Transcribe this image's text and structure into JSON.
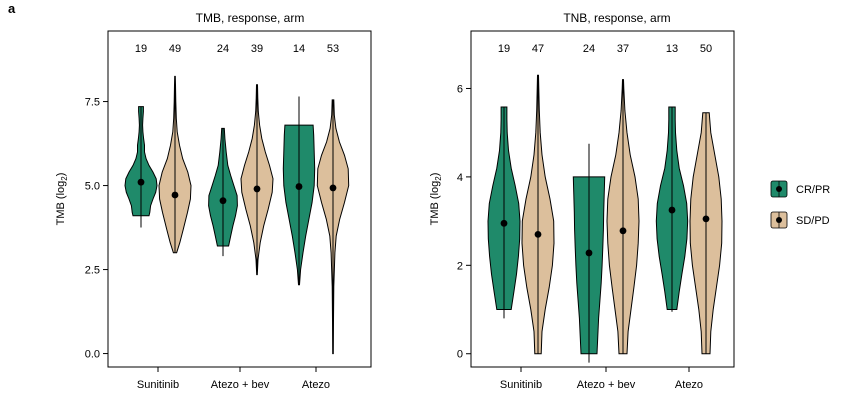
{
  "panel_label": "a",
  "colors": {
    "CR/PR": "#1f8a6a",
    "SD/PD": "#dcbf9c"
  },
  "legend": {
    "items": [
      "CR/PR",
      "SD/PD"
    ]
  },
  "chart_data": [
    {
      "type": "violin",
      "title": "TMB, response, arm",
      "ylabel_main": "TMB (log",
      "ylabel_sub": "2",
      "ylabel_close": ")",
      "ylim": [
        -0.4,
        9.6
      ],
      "yticks": [
        "0.0",
        "2.5",
        "5.0",
        "7.5"
      ],
      "ytick_values": [
        0.0,
        2.5,
        5.0,
        7.5
      ],
      "categories": [
        "Sunitinib",
        "Atezo + bev",
        "Atezo"
      ],
      "series": [
        {
          "name": "CR/PR",
          "counts": [
            "19",
            "24",
            "14"
          ],
          "medians": [
            5.1,
            4.55,
            4.97
          ],
          "whisker_low": [
            3.75,
            2.9,
            2.05
          ],
          "whisker_high": [
            7.35,
            6.7,
            7.65
          ],
          "profiles": [
            [
              [
                4.1,
                0.5
              ],
              [
                4.2,
                0.55
              ],
              [
                4.4,
                0.6
              ],
              [
                4.6,
                0.75
              ],
              [
                4.8,
                0.92
              ],
              [
                5.0,
                1.0
              ],
              [
                5.2,
                0.95
              ],
              [
                5.4,
                0.75
              ],
              [
                5.6,
                0.5
              ],
              [
                5.8,
                0.32
              ],
              [
                6.0,
                0.22
              ],
              [
                6.2,
                0.22
              ],
              [
                6.4,
                0.16
              ],
              [
                6.6,
                0.12
              ],
              [
                6.8,
                0.1
              ],
              [
                7.0,
                0.12
              ],
              [
                7.2,
                0.15
              ],
              [
                7.35,
                0.15
              ]
            ],
            [
              [
                3.2,
                0.35
              ],
              [
                3.5,
                0.48
              ],
              [
                3.8,
                0.62
              ],
              [
                4.1,
                0.78
              ],
              [
                4.4,
                0.9
              ],
              [
                4.7,
                0.88
              ],
              [
                5.0,
                0.68
              ],
              [
                5.3,
                0.48
              ],
              [
                5.6,
                0.3
              ],
              [
                6.0,
                0.2
              ],
              [
                6.4,
                0.12
              ],
              [
                6.7,
                0.08
              ]
            ],
            [
              [
                2.05,
                0.03
              ],
              [
                2.5,
                0.1
              ],
              [
                3.0,
                0.25
              ],
              [
                3.5,
                0.42
              ],
              [
                4.0,
                0.62
              ],
              [
                4.5,
                0.82
              ],
              [
                5.0,
                0.95
              ],
              [
                5.5,
                0.98
              ],
              [
                6.0,
                0.95
              ],
              [
                6.5,
                0.92
              ],
              [
                6.8,
                0.88
              ]
            ]
          ]
        },
        {
          "name": "SD/PD",
          "counts": [
            "49",
            "39",
            "53"
          ],
          "medians": [
            4.72,
            4.9,
            4.93
          ],
          "whisker_low": [
            3.0,
            2.35,
            0.0
          ],
          "whisker_high": [
            8.25,
            8.0,
            7.55
          ],
          "profiles": [
            [
              [
                3.0,
                0.1
              ],
              [
                3.3,
                0.3
              ],
              [
                3.7,
                0.52
              ],
              [
                4.2,
                0.78
              ],
              [
                4.6,
                0.96
              ],
              [
                5.0,
                1.0
              ],
              [
                5.4,
                0.8
              ],
              [
                5.8,
                0.48
              ],
              [
                6.2,
                0.28
              ],
              [
                6.6,
                0.14
              ],
              [
                7.0,
                0.08
              ],
              [
                7.5,
                0.05
              ],
              [
                8.0,
                0.03
              ],
              [
                8.25,
                0.02
              ]
            ],
            [
              [
                2.35,
                0.02
              ],
              [
                2.8,
                0.06
              ],
              [
                3.3,
                0.2
              ],
              [
                3.8,
                0.42
              ],
              [
                4.3,
                0.7
              ],
              [
                4.8,
                0.95
              ],
              [
                5.2,
                1.0
              ],
              [
                5.6,
                0.78
              ],
              [
                6.0,
                0.52
              ],
              [
                6.4,
                0.3
              ],
              [
                6.8,
                0.16
              ],
              [
                7.2,
                0.08
              ],
              [
                7.6,
                0.05
              ],
              [
                8.0,
                0.03
              ]
            ],
            [
              [
                0.0,
                0.02
              ],
              [
                1.0,
                0.03
              ],
              [
                2.0,
                0.05
              ],
              [
                3.0,
                0.12
              ],
              [
                3.5,
                0.2
              ],
              [
                4.0,
                0.42
              ],
              [
                4.5,
                0.72
              ],
              [
                5.0,
                0.98
              ],
              [
                5.5,
                0.95
              ],
              [
                5.9,
                0.72
              ],
              [
                6.3,
                0.4
              ],
              [
                6.7,
                0.18
              ],
              [
                7.1,
                0.08
              ],
              [
                7.55,
                0.05
              ]
            ]
          ]
        }
      ]
    },
    {
      "type": "violin",
      "title": "TNB, response, arm",
      "ylabel_main": "TMB (log",
      "ylabel_sub": "2",
      "ylabel_close": ")",
      "ylim": [
        -0.3,
        7.3
      ],
      "yticks": [
        "0",
        "2",
        "4",
        "6"
      ],
      "ytick_values": [
        0,
        2,
        4,
        6
      ],
      "categories": [
        "Sunitinib",
        "Atezo + bev",
        "Atezo"
      ],
      "series": [
        {
          "name": "CR/PR",
          "counts": [
            "19",
            "24",
            "13"
          ],
          "medians": [
            2.95,
            2.28,
            3.25
          ],
          "whisker_low": [
            0.8,
            -0.2,
            0.95
          ],
          "whisker_high": [
            5.58,
            4.75,
            5.58
          ],
          "profiles": [
            [
              [
                1.0,
                0.45
              ],
              [
                1.4,
                0.62
              ],
              [
                1.8,
                0.78
              ],
              [
                2.2,
                0.9
              ],
              [
                2.6,
                0.98
              ],
              [
                3.0,
                1.0
              ],
              [
                3.4,
                0.92
              ],
              [
                3.8,
                0.7
              ],
              [
                4.2,
                0.45
              ],
              [
                4.6,
                0.28
              ],
              [
                5.0,
                0.2
              ],
              [
                5.3,
                0.18
              ],
              [
                5.58,
                0.18
              ]
            ],
            [
              [
                0.0,
                0.5
              ],
              [
                0.4,
                0.55
              ],
              [
                0.8,
                0.6
              ],
              [
                1.2,
                0.68
              ],
              [
                1.6,
                0.76
              ],
              [
                2.0,
                0.82
              ],
              [
                2.4,
                0.86
              ],
              [
                2.8,
                0.9
              ],
              [
                3.2,
                0.92
              ],
              [
                3.6,
                0.95
              ],
              [
                4.0,
                0.98
              ]
            ],
            [
              [
                1.0,
                0.3
              ],
              [
                1.4,
                0.45
              ],
              [
                1.8,
                0.62
              ],
              [
                2.2,
                0.8
              ],
              [
                2.6,
                0.93
              ],
              [
                3.0,
                0.98
              ],
              [
                3.4,
                0.92
              ],
              [
                3.8,
                0.72
              ],
              [
                4.2,
                0.45
              ],
              [
                4.6,
                0.3
              ],
              [
                5.0,
                0.22
              ],
              [
                5.3,
                0.2
              ],
              [
                5.58,
                0.2
              ]
            ]
          ]
        },
        {
          "name": "SD/PD",
          "counts": [
            "47",
            "37",
            "50"
          ],
          "medians": [
            2.7,
            2.78,
            3.05
          ],
          "whisker_low": [
            0.0,
            0.0,
            0.0
          ],
          "whisker_high": [
            6.3,
            6.2,
            5.45
          ],
          "profiles": [
            [
              [
                0.0,
                0.2
              ],
              [
                0.5,
                0.25
              ],
              [
                1.0,
                0.45
              ],
              [
                1.5,
                0.7
              ],
              [
                2.0,
                0.9
              ],
              [
                2.5,
                1.0
              ],
              [
                3.0,
                0.98
              ],
              [
                3.5,
                0.75
              ],
              [
                4.0,
                0.45
              ],
              [
                4.5,
                0.25
              ],
              [
                5.0,
                0.14
              ],
              [
                5.5,
                0.08
              ],
              [
                6.0,
                0.05
              ],
              [
                6.3,
                0.03
              ]
            ],
            [
              [
                0.0,
                0.25
              ],
              [
                0.5,
                0.32
              ],
              [
                1.0,
                0.5
              ],
              [
                1.5,
                0.68
              ],
              [
                2.0,
                0.85
              ],
              [
                2.5,
                0.95
              ],
              [
                3.0,
                1.0
              ],
              [
                3.5,
                0.95
              ],
              [
                4.0,
                0.75
              ],
              [
                4.5,
                0.45
              ],
              [
                5.0,
                0.25
              ],
              [
                5.5,
                0.12
              ],
              [
                6.0,
                0.05
              ],
              [
                6.2,
                0.03
              ]
            ],
            [
              [
                0.0,
                0.25
              ],
              [
                0.5,
                0.3
              ],
              [
                1.0,
                0.45
              ],
              [
                1.5,
                0.65
              ],
              [
                2.0,
                0.85
              ],
              [
                2.5,
                0.98
              ],
              [
                3.0,
                1.0
              ],
              [
                3.5,
                0.95
              ],
              [
                4.0,
                0.8
              ],
              [
                4.5,
                0.55
              ],
              [
                5.0,
                0.3
              ],
              [
                5.45,
                0.2
              ]
            ]
          ]
        }
      ]
    }
  ]
}
